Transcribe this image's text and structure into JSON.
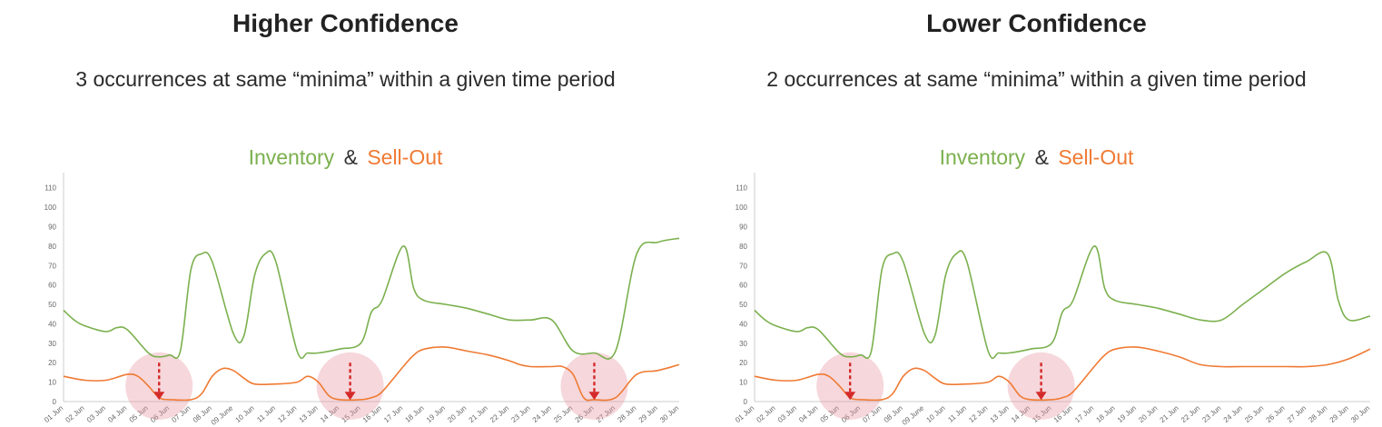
{
  "chart_data": [
    {
      "type": "line",
      "title": "Higher Confidence",
      "subtitle": "3 occurrences at same “minima” within a given time period",
      "chart_title": {
        "left": "Inventory",
        "amp": "&",
        "right": "Sell-Out"
      },
      "yticks": [
        0,
        10,
        20,
        30,
        40,
        50,
        60,
        70,
        80,
        90,
        100,
        110
      ],
      "ylim": [
        0,
        115
      ],
      "categories": [
        "01 Jun",
        "02 Jun",
        "03 Jun",
        "04 Jun",
        "05 Jun",
        "06 Jun",
        "07 Jun",
        "08 Jun",
        "09 June",
        "10 Jun",
        "11 Jun",
        "12 Jun",
        "13 Jun",
        "14 Jun",
        "15 Jun",
        "16 Jun",
        "17 Jun",
        "18 Jun",
        "19 Jun",
        "20 Jun",
        "21 Jun",
        "22 Jun",
        "23 Jun",
        "24 Jun",
        "25 Jun",
        "26 Jun",
        "27 Jun",
        "28 Jun",
        "29 Jun",
        "30 Jun"
      ],
      "series": [
        {
          "name": "Inventory",
          "color": "#7bb04e",
          "x": [
            1,
            1.5,
            2,
            3,
            3.5,
            4,
            5,
            5.5,
            6,
            6.5,
            7,
            7.5,
            8,
            9,
            9.5,
            10,
            10.5,
            11,
            12,
            12.5,
            13,
            14,
            15,
            15.5,
            16,
            17,
            17.5,
            18,
            19,
            20,
            21,
            22,
            23,
            24,
            25,
            26,
            27,
            28,
            29,
            30
          ],
          "values": [
            47,
            42,
            39,
            36,
            38,
            37,
            25,
            23,
            24,
            26,
            68,
            76,
            72,
            35,
            34,
            65,
            76,
            72,
            26,
            25,
            25,
            27,
            30,
            46,
            52,
            80,
            58,
            52,
            50,
            48,
            45,
            42,
            42,
            42,
            26,
            25,
            26,
            76,
            82,
            84
          ]
        },
        {
          "name": "Sell-Out",
          "color": "#ef7a33",
          "x": [
            1,
            2,
            3,
            4,
            4.5,
            5,
            5.5,
            6,
            7,
            7.5,
            8,
            8.5,
            9,
            9.5,
            10,
            11,
            12,
            12.5,
            13,
            13.5,
            14,
            15,
            15.5,
            16,
            17,
            17.5,
            18,
            19,
            20,
            21,
            22,
            22.5,
            23,
            24,
            24.5,
            25,
            25.5,
            26,
            27,
            28,
            29,
            30
          ],
          "values": [
            13,
            11,
            11,
            14,
            13,
            8,
            2,
            1,
            1,
            4,
            13,
            17,
            16,
            12,
            9,
            9,
            10,
            13,
            10,
            3,
            1,
            1,
            2,
            5,
            18,
            24,
            27,
            28,
            26,
            24,
            21,
            19,
            18,
            18,
            18,
            14,
            2,
            1,
            2,
            14,
            16,
            19
          ]
        }
      ],
      "markers_x": [
        5.5,
        14.5,
        26
      ]
    },
    {
      "type": "line",
      "title": "Lower Confidence",
      "subtitle": "2 occurrences at same “minima” within a given time period",
      "chart_title": {
        "left": "Inventory",
        "amp": "&",
        "right": "Sell-Out"
      },
      "yticks": [
        0,
        10,
        20,
        30,
        40,
        50,
        60,
        70,
        80,
        90,
        100,
        110
      ],
      "ylim": [
        0,
        115
      ],
      "categories": [
        "01 Jun",
        "02 Jun",
        "03 Jun",
        "04 Jun",
        "05 Jun",
        "06 Jun",
        "07 Jun",
        "08 Jun",
        "09 June",
        "10 Jun",
        "11 Jun",
        "12 Jun",
        "13 Jun",
        "14 Jun",
        "15 Jun",
        "16 Jun",
        "17 Jun",
        "18 Jun",
        "19 Jun",
        "20 Jun",
        "21 Jun",
        "22 Jun",
        "23 Jun",
        "24 Jun",
        "25 Jun",
        "26 Jun",
        "27 Jun",
        "28 Jun",
        "29 Jun",
        "30 Jun"
      ],
      "series": [
        {
          "name": "Inventory",
          "color": "#7bb04e",
          "x": [
            1,
            1.5,
            2,
            3,
            3.5,
            4,
            5,
            5.5,
            6,
            6.5,
            7,
            7.5,
            8,
            9,
            9.5,
            10,
            10.5,
            11,
            12,
            12.5,
            13,
            14,
            15,
            15.5,
            16,
            17,
            17.5,
            18,
            19,
            20,
            21,
            22,
            23,
            24,
            25,
            26,
            27,
            28,
            28.5,
            29,
            30
          ],
          "values": [
            47,
            42,
            39,
            36,
            38,
            37,
            25,
            23,
            24,
            26,
            68,
            76,
            72,
            35,
            34,
            65,
            76,
            72,
            26,
            25,
            25,
            27,
            30,
            46,
            52,
            80,
            58,
            52,
            50,
            48,
            45,
            42,
            42,
            50,
            58,
            66,
            72,
            76,
            52,
            42,
            44
          ]
        },
        {
          "name": "Sell-Out",
          "color": "#ef7a33",
          "x": [
            1,
            2,
            3,
            4,
            4.5,
            5,
            5.5,
            6,
            7,
            7.5,
            8,
            8.5,
            9,
            9.5,
            10,
            11,
            12,
            12.5,
            13,
            13.5,
            14,
            15,
            15.5,
            16,
            17,
            17.5,
            18,
            19,
            20,
            21,
            22,
            23,
            24,
            25,
            26,
            27,
            28,
            29,
            30
          ],
          "values": [
            13,
            11,
            11,
            14,
            13,
            8,
            2,
            1,
            1,
            4,
            13,
            17,
            16,
            12,
            9,
            9,
            10,
            13,
            10,
            3,
            1,
            1,
            2,
            5,
            18,
            24,
            27,
            28,
            26,
            23,
            19,
            18,
            18,
            18,
            18,
            18,
            19,
            22,
            27
          ]
        }
      ],
      "markers_x": [
        5.5,
        14.5
      ]
    }
  ]
}
